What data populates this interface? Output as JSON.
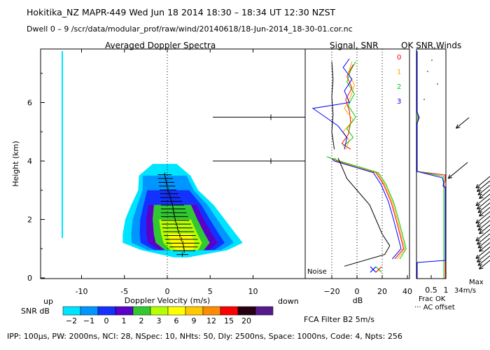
{
  "header": {
    "line1": "Hokitika_NZ   MAPR-449   Wed Jun 18 2014 18:30 – 18:34 UT 12:30 NZST",
    "line2": "Dwell   0  –   9     /scr/data/modular_prof/raw/wind/20140618/18-Jun-2014_18-30-01.cor.nc"
  },
  "panels": {
    "spectra_title": "Averaged Doppler Spectra",
    "signal_title": "Signal, SNR",
    "ok_title": "OK SNR,Winds"
  },
  "chart_data": [
    {
      "type": "heatmap",
      "title": "Averaged Doppler Spectra",
      "xlabel": "Doppler Velocity (m/s)",
      "ylabel": "Height (km)",
      "xlim": [
        -15,
        15
      ],
      "ylim": [
        0,
        7.7
      ],
      "x_ticks": [
        "-10",
        "-5",
        "0",
        "5",
        "10"
      ],
      "y_ticks": [
        "0",
        "2",
        "4",
        "6"
      ],
      "x_tick_values": [
        -10,
        -5,
        0,
        5,
        10
      ],
      "y_tick_values": [
        0,
        2,
        4,
        6
      ],
      "x_left_note": "up",
      "x_right_note": "down",
      "colorbar": {
        "label": "SNR dB",
        "ticks": [
          "−2",
          "−1",
          "0",
          "1",
          "2",
          "3",
          "6",
          "9",
          "12",
          "15",
          "20"
        ],
        "colors": [
          "#00e5ff",
          "#0096ff",
          "#1432ff",
          "#5a00c8",
          "#32c832",
          "#b4ff00",
          "#ffff00",
          "#ffc800",
          "#ff8c00",
          "#ff0000",
          "#280014",
          "#551a8b"
        ]
      },
      "profile": [
        {
          "h": 0.7,
          "halfwidth": 0.8,
          "center": 1.6
        },
        {
          "h": 0.95,
          "halfwidth": 5.0,
          "center": 2.0
        },
        {
          "h": 1.2,
          "halfwidth": 7.0,
          "center": 1.8
        },
        {
          "h": 1.5,
          "halfwidth": 6.6,
          "center": 1.4
        },
        {
          "h": 2.0,
          "halfwidth": 5.8,
          "center": 0.9
        },
        {
          "h": 2.5,
          "halfwidth": 4.8,
          "center": 0.6
        },
        {
          "h": 3.0,
          "halfwidth": 3.5,
          "center": 0.1
        },
        {
          "h": 3.5,
          "halfwidth": 3.0,
          "center": -0.3
        },
        {
          "h": 3.9,
          "halfwidth": 1.4,
          "center": -0.3
        }
      ],
      "spike_heights_km": [
        5.5,
        4.0
      ],
      "spike_velocity_ms": 12
    },
    {
      "type": "line",
      "title": "Signal, SNR",
      "xlabel": "dB",
      "xlim": [
        -40,
        40
      ],
      "x_ticks": [
        "−20",
        "0",
        "20",
        "40"
      ],
      "x_tick_values": [
        -20,
        0,
        20,
        40
      ],
      "noise_label": "Noise",
      "series": [
        {
          "name": "0",
          "color": "#ff0000",
          "points": [
            [
              30,
              0.65
            ],
            [
              37,
              1.0
            ],
            [
              34,
              1.5
            ],
            [
              31,
              2.0
            ],
            [
              27,
              2.6
            ],
            [
              21,
              3.2
            ],
            [
              15,
              3.6
            ],
            [
              -16,
              4.0
            ],
            [
              -18,
              4.1
            ]
          ]
        },
        {
          "name": "1",
          "color": "#ffa500",
          "points": [
            [
              32,
              0.65
            ],
            [
              38,
              1.0
            ],
            [
              35,
              1.5
            ],
            [
              32,
              2.0
            ],
            [
              28,
              2.6
            ],
            [
              22,
              3.2
            ],
            [
              16,
              3.6
            ],
            [
              -17,
              4.0
            ],
            [
              -22,
              4.12
            ]
          ]
        },
        {
          "name": "2",
          "color": "#00cc00",
          "points": [
            [
              34,
              0.65
            ],
            [
              39,
              1.0
            ],
            [
              36,
              1.5
            ],
            [
              33,
              2.0
            ],
            [
              29,
              2.6
            ],
            [
              23,
              3.2
            ],
            [
              17,
              3.6
            ],
            [
              -14,
              4.0
            ],
            [
              -24,
              4.15
            ]
          ]
        },
        {
          "name": "3",
          "color": "#0000ff",
          "points": [
            [
              28,
              0.65
            ],
            [
              35,
              1.0
            ],
            [
              32,
              1.5
            ],
            [
              29,
              2.0
            ],
            [
              25,
              2.6
            ],
            [
              19,
              3.2
            ],
            [
              13,
              3.6
            ],
            [
              -18,
              4.0
            ],
            [
              -20,
              4.08
            ]
          ]
        },
        {
          "name": "Noise",
          "color": "#000000",
          "points": [
            [
              -10,
              0.4
            ],
            [
              22,
              0.8
            ],
            [
              26,
              1.1
            ],
            [
              20,
              1.5
            ],
            [
              15,
              2.0
            ],
            [
              10,
              2.5
            ],
            [
              0,
              3.0
            ],
            [
              -8,
              3.4
            ],
            [
              -12,
              3.8
            ],
            [
              -15,
              4.1
            ]
          ]
        }
      ],
      "upper_series": [
        {
          "name": "0",
          "color": "#ff0000",
          "points": [
            [
              -5,
              4.4
            ],
            [
              -12,
              4.6
            ],
            [
              -7,
              4.9
            ],
            [
              -5,
              5.3
            ],
            [
              -6,
              5.7
            ],
            [
              -9,
              6.1
            ],
            [
              -4,
              6.5
            ],
            [
              -8,
              6.9
            ],
            [
              -3,
              7.3
            ]
          ]
        },
        {
          "name": "1",
          "color": "#ffa500",
          "points": [
            [
              -9,
              4.4
            ],
            [
              -6,
              4.7
            ],
            [
              -11,
              5.0
            ],
            [
              -3,
              5.4
            ],
            [
              -10,
              5.8
            ],
            [
              -5,
              6.2
            ],
            [
              -2,
              6.6
            ],
            [
              -7,
              7.0
            ],
            [
              -4,
              7.4
            ]
          ]
        },
        {
          "name": "2",
          "color": "#00cc00",
          "points": [
            [
              -11,
              4.5
            ],
            [
              -3,
              4.8
            ],
            [
              -8,
              5.1
            ],
            [
              -1,
              5.5
            ],
            [
              -7,
              5.9
            ],
            [
              -2,
              6.3
            ],
            [
              -8,
              6.7
            ],
            [
              -5,
              7.1
            ],
            [
              -1,
              7.4
            ]
          ]
        },
        {
          "name": "3",
          "color": "#0000ff",
          "points": [
            [
              -10,
              4.4
            ],
            [
              -8,
              4.8
            ],
            [
              -15,
              5.2
            ],
            [
              -35,
              5.8
            ],
            [
              -6,
              6.0
            ],
            [
              -10,
              6.4
            ],
            [
              -4,
              6.8
            ],
            [
              -11,
              7.2
            ],
            [
              -6,
              7.5
            ]
          ]
        },
        {
          "name": "Noise",
          "color": "#000000",
          "points": [
            [
              -18,
              4.4
            ],
            [
              -20,
              5.0
            ],
            [
              -19,
              5.6
            ],
            [
              -20,
              6.2
            ],
            [
              -19,
              6.8
            ],
            [
              -20,
              7.4
            ]
          ]
        }
      ]
    },
    {
      "type": "line",
      "title": "OK SNR,Winds",
      "xlabel": "Frac OK",
      "x_ticks": [
        "0.5",
        "1"
      ],
      "x_tick_values": [
        0.5,
        1.0
      ],
      "notes": [
        "Max",
        "34m/s"
      ],
      "ac_label": "··· AC offset"
    }
  ],
  "legend_numbers": [
    {
      "label": "0",
      "color": "#ff0000"
    },
    {
      "label": "1",
      "color": "#ffa500"
    },
    {
      "label": "2",
      "color": "#00cc00"
    },
    {
      "label": "3",
      "color": "#0000ff"
    }
  ],
  "footer": {
    "fca": "FCA Filter B2   5m/s",
    "params": "IPP: 100μs,   PW: 2000ns,   NCI:   28,   NSpec: 10,  NHts: 50,   Dly: 2500ns,   Space: 1000ns,   Code: 4,   Npts: 256"
  }
}
